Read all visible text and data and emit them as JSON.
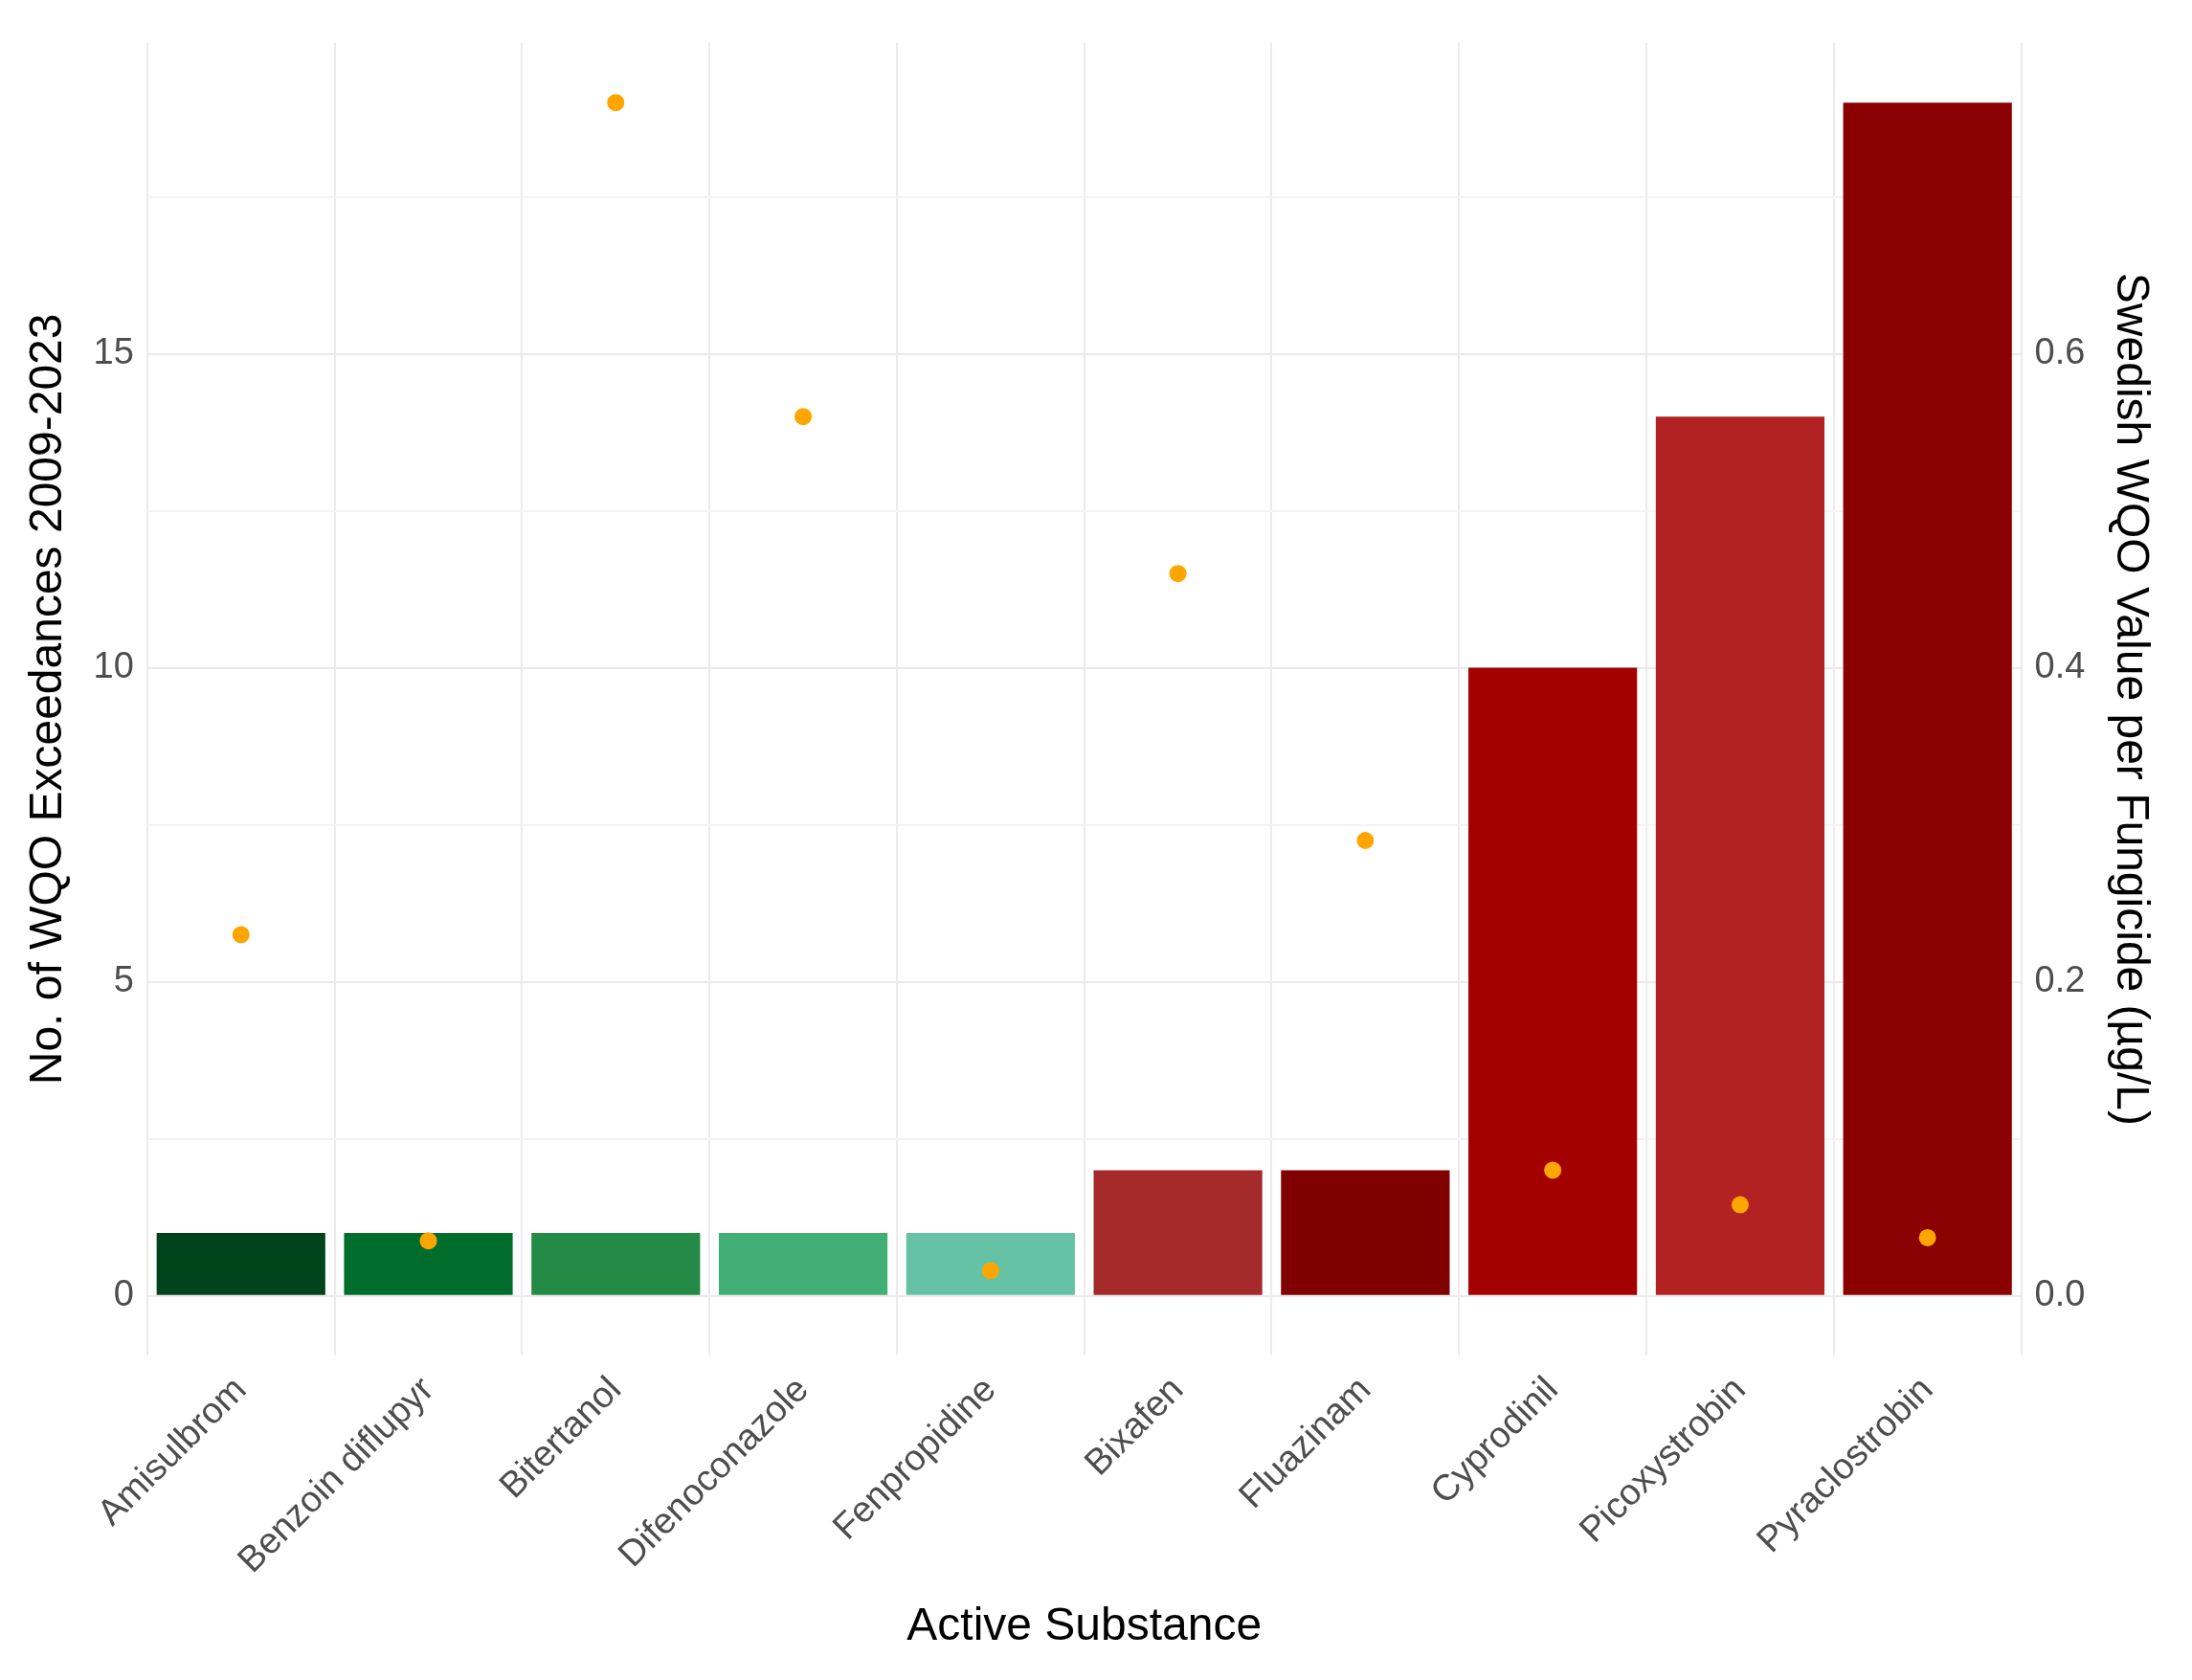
{
  "chart_data": {
    "type": "bar",
    "xlabel": "Active Substance",
    "ylabel": "No. of WQO Exceedances 2009-2023",
    "y2label": "Swedish WQO Value per Fungicide (µg/L)",
    "categories": [
      "Amisulbrom",
      "Benzoin diflupyr",
      "Bitertanol",
      "Difenoconazole",
      "Fenpropidine",
      "Bixafen",
      "Fluazinam",
      "Cyprodinil",
      "Picoxystrobin",
      "Pyraclostrobin"
    ],
    "series": [
      {
        "values": [
          1,
          1,
          1,
          1,
          1,
          2,
          2,
          10,
          14,
          19
        ],
        "colors": [
          "#00441b",
          "#006d2c",
          "#238b45",
          "#41ae76",
          "#66c2a4",
          "#a52a2a",
          "#800000",
          "#a50000",
          "#b22222",
          "#8b0000"
        ]
      },
      {
        "type": "scatter",
        "axis": "y2",
        "color": "#ffa500",
        "values": [
          0.23,
          0.035,
          0.76,
          0.56,
          0.016,
          0.46,
          0.29,
          0.08,
          0.058,
          0.037
        ]
      }
    ],
    "ylim": [
      -0.95,
      19.95
    ],
    "yticks": [
      0,
      {
        "value": 2.5,
        "label": null
      },
      5,
      {
        "value": 7.5,
        "label": null
      },
      10,
      {
        "value": 12.5,
        "label": null
      },
      15,
      {
        "value": 17.5,
        "label": null
      }
    ],
    "y2lim": [
      -0.038,
      0.798
    ],
    "y2ticks": [
      {
        "value": 0,
        "label": "0.0"
      },
      0.2,
      0.4,
      0.6
    ],
    "grid": true,
    "legend": false,
    "marker": "circle"
  }
}
